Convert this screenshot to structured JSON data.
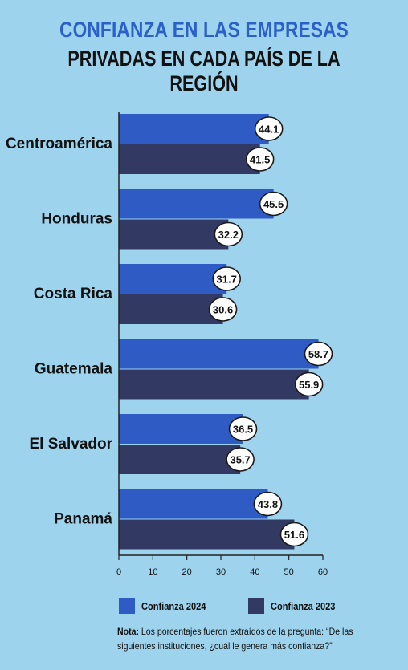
{
  "title_line1": "CONFIANZA EN LAS EMPRESAS",
  "title_line2": "PRIVADAS EN CADA PAÍS DE LA REGIÓN",
  "colors": {
    "series2024": "#2f5bc4",
    "series2023": "#323a63",
    "background": "#9dd3ec"
  },
  "chart_data": {
    "type": "bar",
    "orientation": "horizontal",
    "categories": [
      "Centroamérica",
      "Honduras",
      "Costa Rica",
      "Guatemala",
      "El Salvador",
      "Panamá"
    ],
    "series": [
      {
        "name": "Confianza 2024",
        "values": [
          44.1,
          45.5,
          31.7,
          58.7,
          36.5,
          43.8
        ]
      },
      {
        "name": "Confianza 2023",
        "values": [
          41.5,
          32.2,
          30.6,
          55.9,
          35.7,
          51.6
        ]
      }
    ],
    "xlim": [
      0,
      60
    ],
    "xticks": [
      0,
      10,
      20,
      30,
      40,
      50,
      60
    ],
    "data_labels": true,
    "legend_position": "bottom"
  },
  "legend": [
    {
      "label": "Confianza 2024"
    },
    {
      "label": "Confianza 2023"
    }
  ],
  "note": {
    "prefix": "Nota:",
    "text": " Los porcentajes fueron extraídos de la pregunta: “De las siguientes instituciones, ¿cuál le genera más confianza?”"
  }
}
